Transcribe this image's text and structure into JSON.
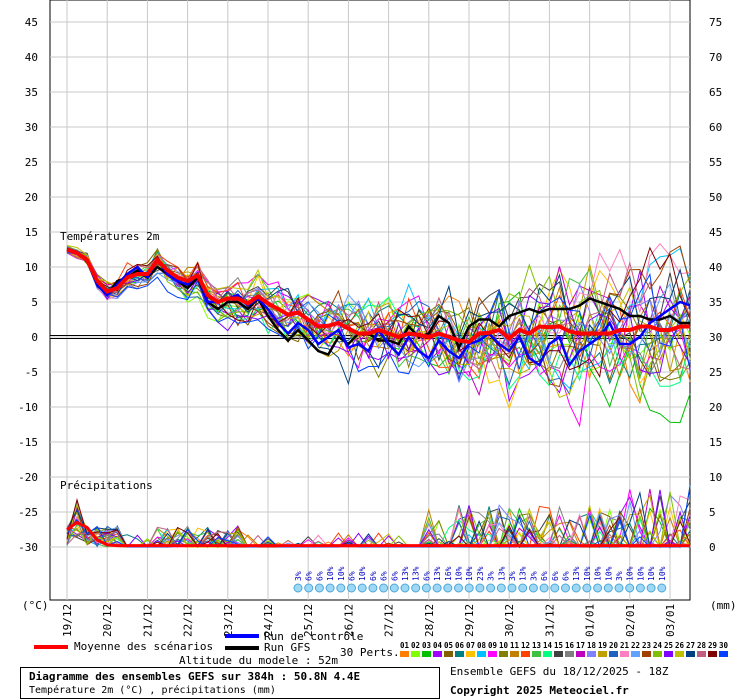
{
  "chart_data": {
    "type": "line",
    "title": "Diagramme des ensembles GEFS sur 384h : 50.8N 4.4E",
    "subtitle": "Température 2m (°C) , précipitations (mm)",
    "panel_labels": {
      "temperature": "Températures 2m",
      "precipitation": "Précipitations"
    },
    "left_axis": {
      "unit": "(°C)",
      "ticks": [
        45,
        40,
        35,
        30,
        25,
        20,
        15,
        10,
        5,
        0,
        -5,
        -10,
        -15,
        -20,
        -25,
        -30
      ],
      "range": [
        -30,
        45
      ]
    },
    "right_axis": {
      "unit": "(mm)",
      "ticks": [
        75,
        70,
        65,
        60,
        55,
        50,
        45,
        40,
        35,
        30,
        25,
        20,
        15,
        10,
        5,
        0
      ],
      "range": [
        0,
        75
      ]
    },
    "x_ticks": [
      "19/12",
      "20/12",
      "21/12",
      "22/12",
      "23/12",
      "24/12",
      "25/12",
      "26/12",
      "27/12",
      "28/12",
      "29/12",
      "30/12",
      "31/12",
      "01/01",
      "02/01",
      "03/01"
    ],
    "grid": true,
    "snow_probabilities": [
      "3%",
      "6%",
      "6%",
      "10%",
      "10%",
      "6%",
      "10%",
      "6%",
      "6%",
      "6%",
      "13%",
      "13%",
      "6%",
      "13%",
      "16%",
      "10%",
      "10%",
      "23%",
      "3%",
      "13%",
      "3%",
      "13%",
      "3%",
      "6%",
      "6%",
      "6%",
      "13%",
      "10%",
      "10%",
      "10%",
      "3%",
      "10%",
      "10%",
      "10%",
      "10%"
    ],
    "series": [
      {
        "name": "Moyenne des scénarios",
        "color": "#ff0000",
        "temp_x": [
          0,
          0.25,
          0.5,
          0.75,
          1,
          1.25,
          1.5,
          1.75,
          2,
          2.25,
          2.5,
          2.75,
          3,
          3.25,
          3.5,
          3.75,
          4,
          4.25,
          4.5,
          4.75,
          5,
          5.25,
          5.5,
          5.75,
          6,
          6.25,
          6.5,
          6.75,
          7,
          7.25,
          7.5,
          7.75,
          8,
          8.25,
          8.5,
          8.75,
          9,
          9.25,
          9.5,
          9.75,
          10,
          10.25,
          10.5,
          10.75,
          11,
          11.25,
          11.5,
          11.75,
          12,
          12.25,
          12.5,
          12.75,
          13,
          13.25,
          13.5,
          13.75,
          14,
          14.25,
          14.5,
          14.75,
          15,
          15.25,
          15.5
        ],
        "temp": [
          12.5,
          12,
          11,
          8,
          6.5,
          7,
          8.5,
          9,
          9,
          11,
          9.5,
          8.5,
          8,
          8.8,
          6,
          5,
          5.5,
          5.5,
          4.8,
          5.8,
          4.8,
          4,
          3.2,
          3.5,
          2.5,
          1.5,
          1.6,
          2,
          1.2,
          0.5,
          0.5,
          1,
          0.5,
          0,
          0.5,
          0.3,
          0,
          0.5,
          0,
          -0.5,
          -0.7,
          0.5,
          0.6,
          1,
          -0.2,
          1,
          0.5,
          1.5,
          1.4,
          1.5,
          0.8,
          0.5,
          0.5,
          0.5,
          0.5,
          1,
          1,
          1.5,
          1.5,
          1,
          1,
          1.5,
          1.5
        ]
      },
      {
        "name": "Run de contrôle",
        "color": "#0000ff",
        "temp_x": [
          0,
          0.25,
          0.5,
          0.75,
          1,
          1.25,
          1.5,
          1.75,
          2,
          2.25,
          2.5,
          2.75,
          3,
          3.25,
          3.5,
          3.75,
          4,
          4.25,
          4.5,
          4.75,
          5,
          5.25,
          5.5,
          5.75,
          6,
          6.25,
          6.5,
          6.75,
          7,
          7.25,
          7.5,
          7.75,
          8,
          8.25,
          8.5,
          8.75,
          9,
          9.25,
          9.5,
          9.75,
          10,
          10.25,
          10.5,
          10.75,
          11,
          11.25,
          11.5,
          11.75,
          12,
          12.25,
          12.5,
          12.75,
          13,
          13.25,
          13.5,
          13.75,
          14,
          14.25,
          14.5,
          14.75,
          15,
          15.25,
          15.5
        ],
        "temp": [
          12.5,
          12,
          11,
          7.5,
          6,
          7.5,
          9,
          10,
          8.5,
          11,
          9,
          8,
          7.5,
          9,
          5,
          5,
          5.5,
          6,
          4.5,
          5.5,
          4,
          2,
          0.5,
          2,
          1,
          -1,
          0,
          1,
          -1.5,
          -1,
          -2,
          1,
          -1,
          -2.5,
          0,
          -2,
          -3,
          -0.5,
          -2,
          -3,
          -1,
          -0.5,
          0.5,
          -1,
          -2,
          0,
          -3,
          -4,
          -1,
          0,
          -4,
          -2,
          -1,
          0,
          2,
          -1,
          -1,
          0,
          2,
          3,
          4,
          5,
          4.5
        ]
      },
      {
        "name": "Run GFS",
        "color": "#000000",
        "temp_x": [
          0,
          0.25,
          0.5,
          0.75,
          1,
          1.25,
          1.5,
          1.75,
          2,
          2.25,
          2.5,
          2.75,
          3,
          3.25,
          3.5,
          3.75,
          4,
          4.25,
          4.5,
          4.75,
          5,
          5.25,
          5.5,
          5.75,
          6,
          6.25,
          6.5,
          6.75,
          7,
          7.25,
          7.5,
          7.75,
          8,
          8.25,
          8.5,
          8.75,
          9,
          9.25,
          9.5,
          9.75,
          10,
          10.25,
          10.5,
          10.75,
          11,
          11.25,
          11.5,
          11.75,
          12,
          12.25,
          12.5,
          12.75,
          13,
          13.25,
          13.5,
          13.75,
          14,
          14.25,
          14.5,
          14.75,
          15,
          15.25,
          15.5
        ],
        "temp": [
          12.5,
          12,
          11,
          7.5,
          6,
          8,
          8.5,
          9.5,
          8.5,
          10,
          9,
          8,
          7,
          8.5,
          5,
          4,
          5,
          5,
          4,
          5.5,
          3,
          1,
          -0.5,
          1,
          -0.5,
          -2,
          -2.5,
          0,
          -1,
          0.5,
          0.5,
          -0.5,
          -0.5,
          -1,
          1.5,
          0,
          0.5,
          3,
          2,
          -1.5,
          1.5,
          2.5,
          2.5,
          1.5,
          3,
          3.5,
          4,
          3.5,
          4,
          4,
          4,
          4.5,
          5.5,
          5,
          4.5,
          4,
          3,
          3,
          2.5,
          2.5,
          3,
          2,
          2
        ]
      }
    ],
    "ensemble_note": "30 Perts.",
    "perturbations": [
      "01",
      "02",
      "03",
      "04",
      "05",
      "06",
      "07",
      "08",
      "09",
      "10",
      "11",
      "12",
      "13",
      "14",
      "15",
      "16",
      "17",
      "18",
      "19",
      "20",
      "21",
      "22",
      "23",
      "24",
      "25",
      "26",
      "27",
      "28",
      "29",
      "30"
    ],
    "perturbation_colors": [
      "#ff8000",
      "#80ff00",
      "#00c000",
      "#a000ff",
      "#806000",
      "#008080",
      "#ffc000",
      "#00c0ff",
      "#ff00ff",
      "#808000",
      "#c08000",
      "#ff4000",
      "#40c040",
      "#00ff80",
      "#404040",
      "#808080",
      "#c000c0",
      "#8080ff",
      "#c0a000",
      "#2060c0",
      "#ff80c0",
      "#60a0ff",
      "#a04000",
      "#80c000",
      "#8000ff",
      "#c0c000",
      "#004080",
      "#c06080",
      "#800000",
      "#0040ff"
    ],
    "altitude": "Altitude du modele : 52m",
    "run_info": "Ensemble GEFS du 18/12/2025 - 18Z",
    "copyright": "Copyright 2025 Meteociel.fr"
  }
}
